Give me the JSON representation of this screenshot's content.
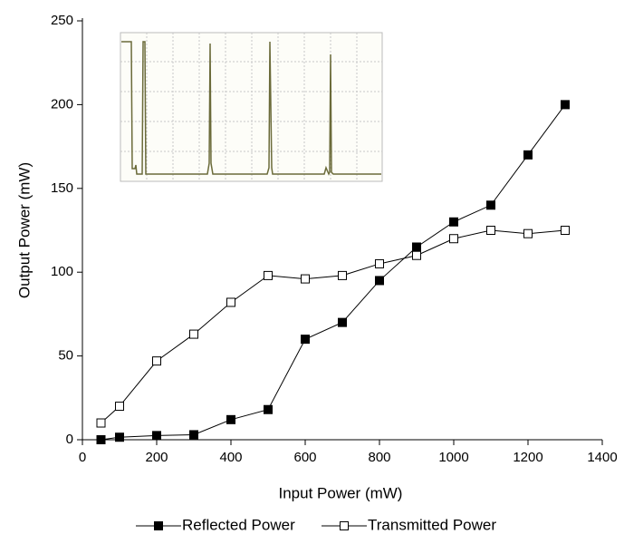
{
  "chart_data": {
    "type": "line",
    "x_label": "Input Power (mW)",
    "y_label": "Output Power (mW)",
    "xlim": [
      0,
      1400
    ],
    "xticks": [
      0,
      200,
      400,
      600,
      800,
      1000,
      1200,
      1400
    ],
    "ylim": [
      0,
      250
    ],
    "yticks": [
      0,
      50,
      100,
      150,
      200,
      250
    ],
    "x": [
      50,
      100,
      200,
      300,
      400,
      500,
      600,
      700,
      800,
      900,
      1000,
      1100,
      1200,
      1300
    ],
    "series": [
      {
        "name": "Reflected Power",
        "color": "#000000",
        "marker": "filled-square",
        "values": [
          0,
          1.5,
          2.5,
          3,
          12,
          18,
          60,
          70,
          95,
          115,
          130,
          140,
          170,
          200
        ]
      },
      {
        "name": "Transmitted Power",
        "color": "#000000",
        "marker": "open-square",
        "values": [
          10,
          20,
          47,
          63,
          82,
          98,
          96,
          98,
          105,
          110,
          120,
          125,
          123,
          125
        ]
      }
    ],
    "legend": "bottom"
  }
}
